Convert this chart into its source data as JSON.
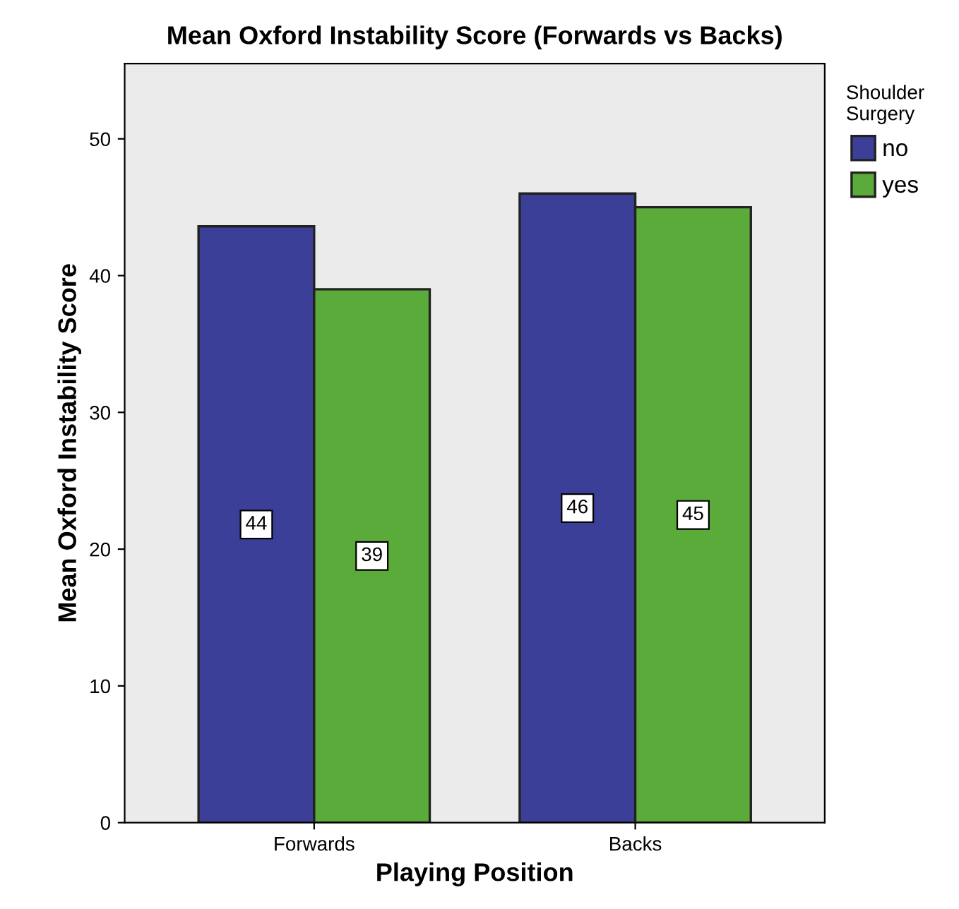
{
  "chart_data": {
    "type": "bar",
    "title": "Mean Oxford Instability Score (Forwards vs Backs)",
    "xlabel": "Playing Position",
    "ylabel": "Mean Oxford Instability Score",
    "legend_title": "Shoulder\nSurgery",
    "categories": [
      "Forwards",
      "Backs"
    ],
    "series": [
      {
        "name": "no",
        "color": "#3c3f98",
        "values": [
          43.6,
          46.0
        ],
        "value_labels": [
          "44",
          "46"
        ]
      },
      {
        "name": "yes",
        "color": "#5aab3a",
        "values": [
          39.0,
          45.0
        ],
        "value_labels": [
          "39",
          "45"
        ]
      }
    ],
    "ylim": [
      0,
      55.5
    ],
    "yticks": [
      0,
      10,
      20,
      30,
      40,
      50
    ],
    "grid": false,
    "legend": "top right"
  }
}
